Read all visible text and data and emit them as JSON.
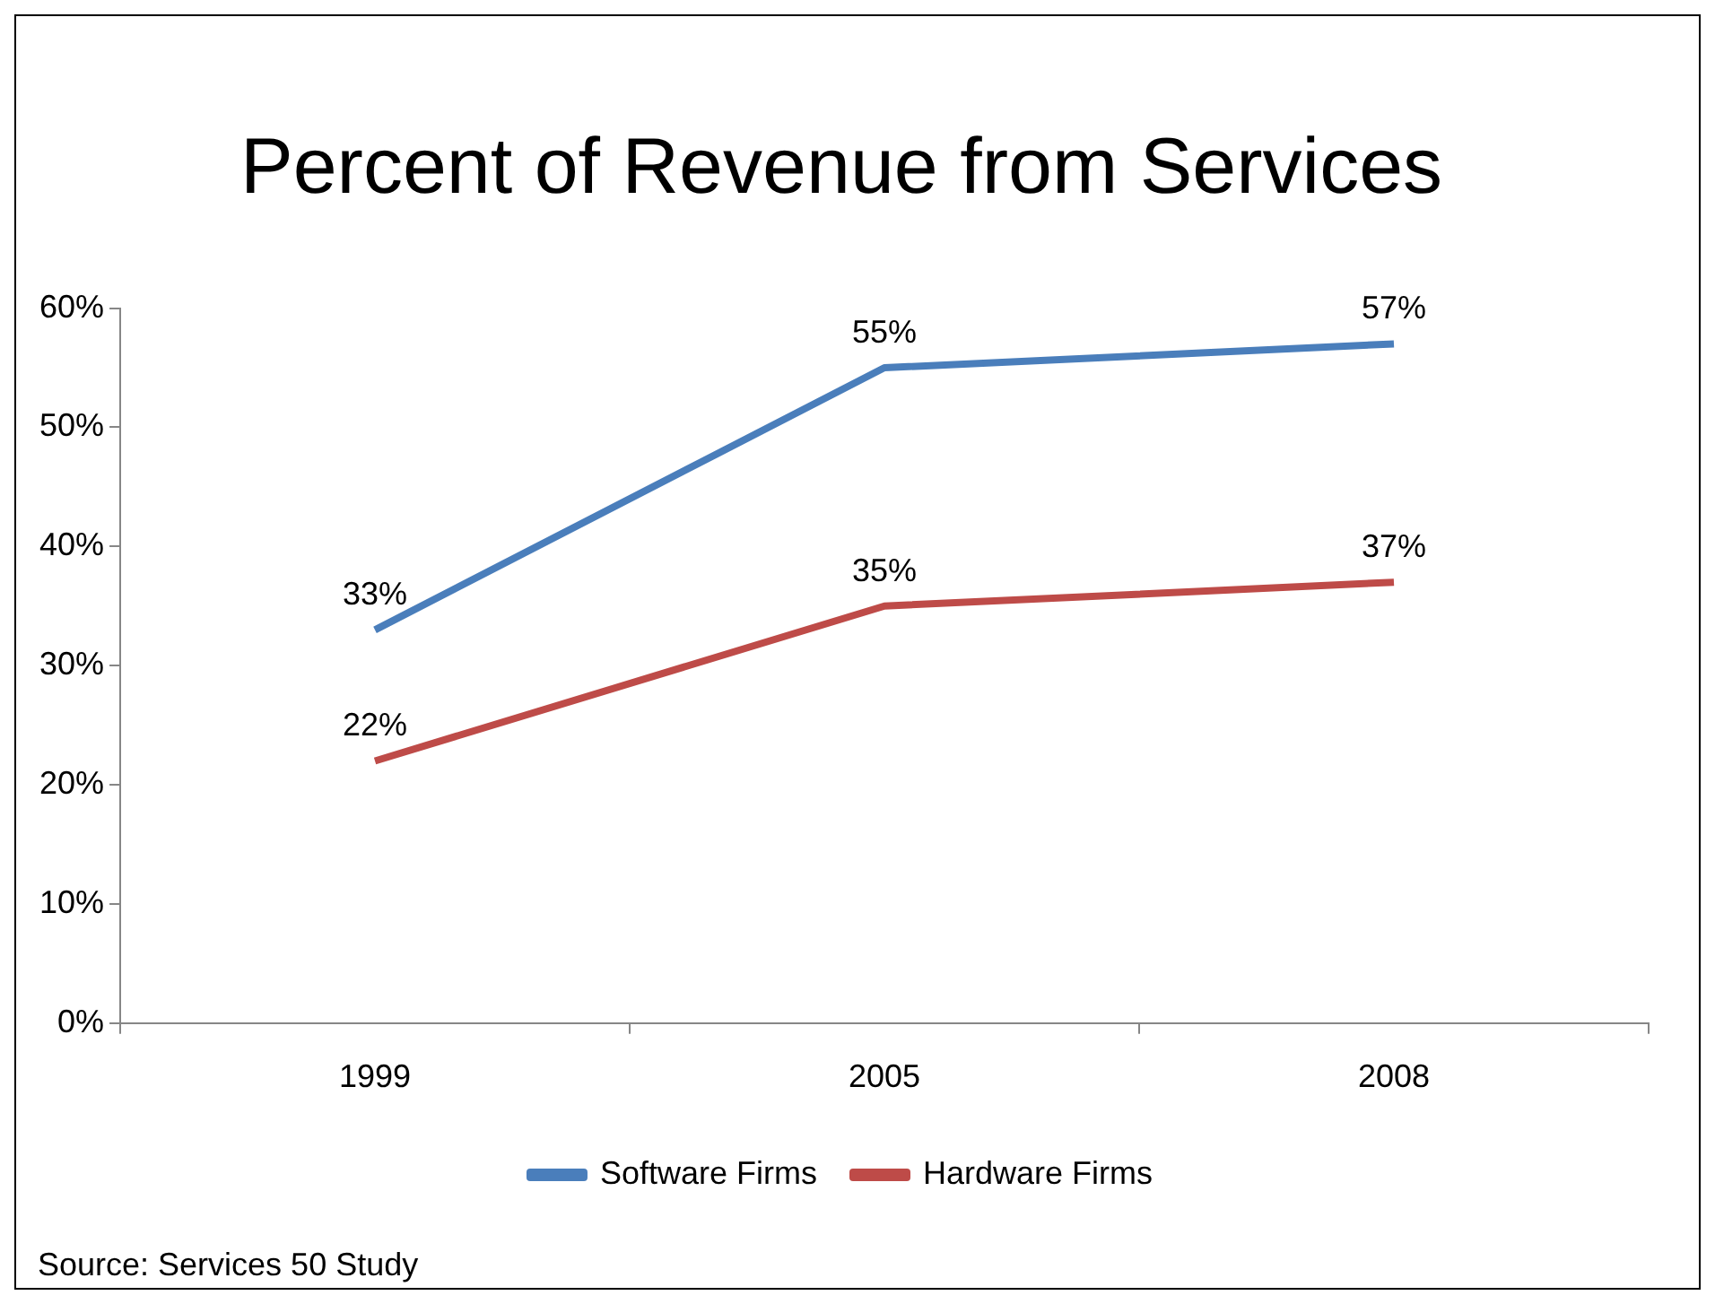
{
  "chart_data": {
    "type": "line",
    "title": "Percent of Revenue from Services",
    "categories": [
      "1999",
      "2005",
      "2008"
    ],
    "series": [
      {
        "name": "Software Firms",
        "color": "#4a7ebb",
        "values": [
          33,
          55,
          57
        ],
        "value_labels": [
          "33%",
          "55%",
          "57%"
        ]
      },
      {
        "name": "Hardware Firms",
        "color": "#be4b48",
        "values": [
          22,
          35,
          37
        ],
        "value_labels": [
          "22%",
          "35%",
          "37%"
        ]
      }
    ],
    "ylim": [
      0,
      60
    ],
    "yticks": [
      {
        "value": 0,
        "label": "0%"
      },
      {
        "value": 10,
        "label": "10%"
      },
      {
        "value": 20,
        "label": "20%"
      },
      {
        "value": 30,
        "label": "30%"
      },
      {
        "value": 40,
        "label": "40%"
      },
      {
        "value": 50,
        "label": "50%"
      },
      {
        "value": 60,
        "label": "60%"
      }
    ],
    "grid": false,
    "legend": "bottom",
    "marker": "none",
    "line_style": "solid",
    "annotations": [
      "Source:  Services 50 Study"
    ]
  }
}
